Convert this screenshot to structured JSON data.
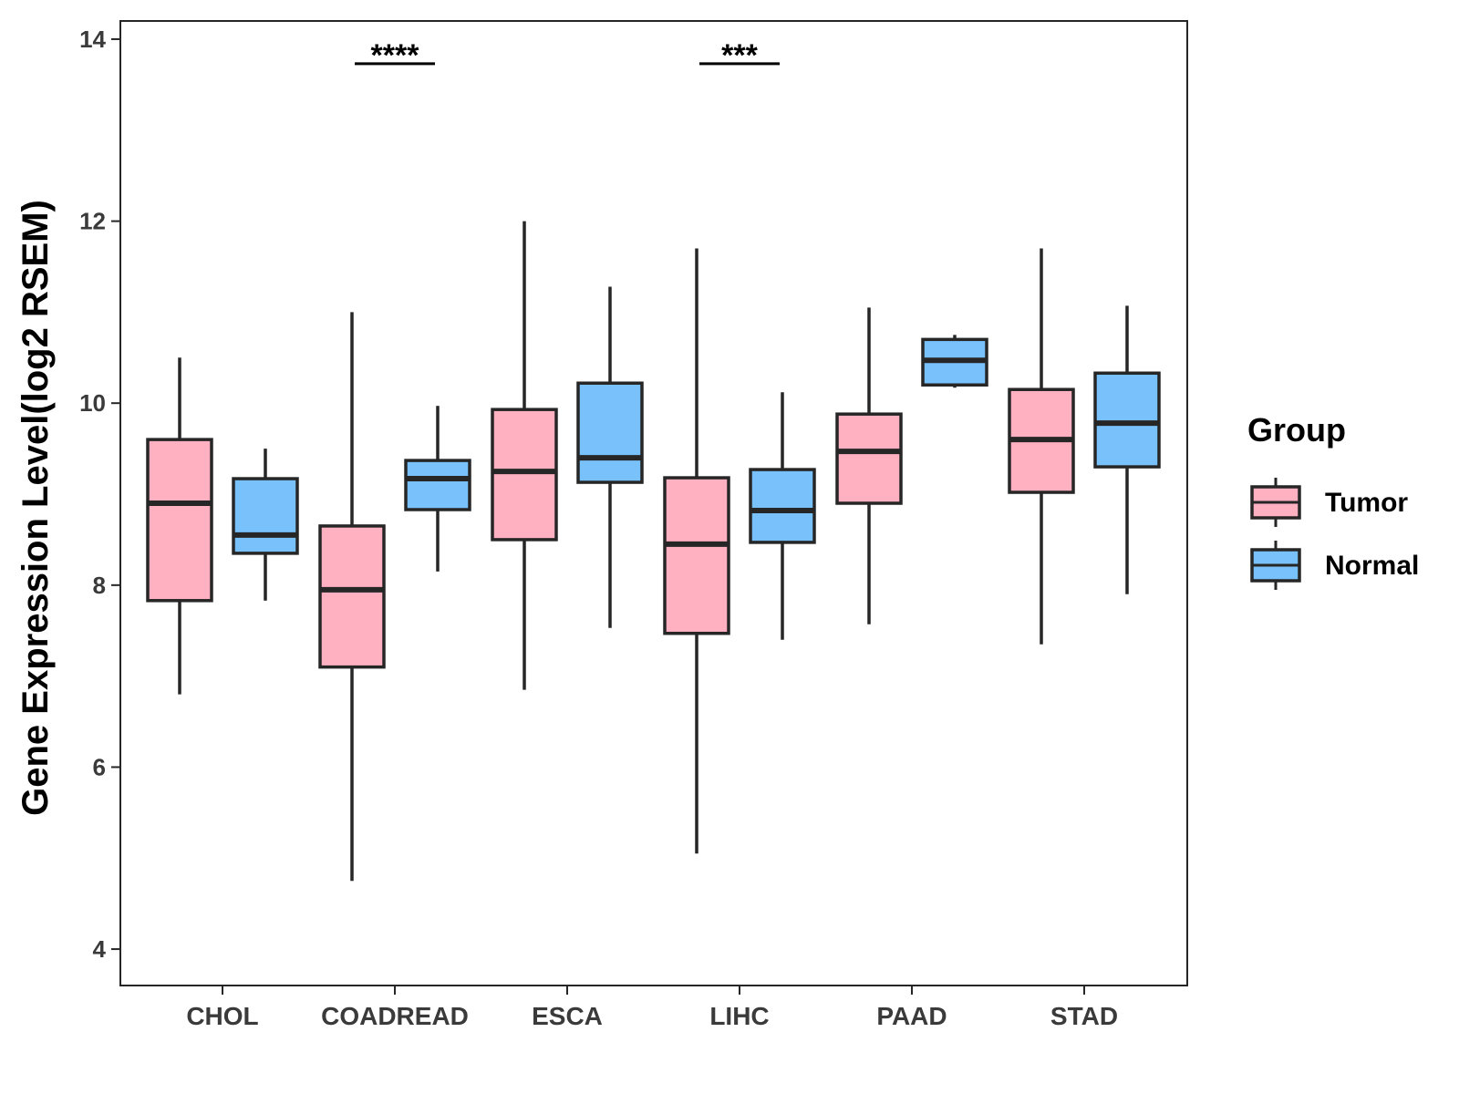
{
  "chart_data": {
    "type": "boxplot",
    "ylabel": "Gene Expression Level(log2 RSEM)",
    "xlabel": "",
    "ylim": [
      3.6,
      14.2
    ],
    "yticks": [
      4,
      6,
      8,
      10,
      12,
      14
    ],
    "ytick_labels": [
      "4",
      "6",
      "8",
      "10",
      "12",
      "14"
    ],
    "categories": [
      "CHOL",
      "COADREAD",
      "ESCA",
      "LIHC",
      "PAAD",
      "STAD"
    ],
    "legend": {
      "title": "Group",
      "position": "right",
      "entries": [
        "Tumor",
        "Normal"
      ]
    },
    "colors": {
      "Tumor": "#FFB0C1",
      "Normal": "#78C1FA",
      "outline": "#262626"
    },
    "series": [
      {
        "name": "Tumor",
        "boxes": [
          {
            "category": "CHOL",
            "low": 6.8,
            "q1": 7.83,
            "median": 8.9,
            "q3": 9.6,
            "high": 10.5
          },
          {
            "category": "COADREAD",
            "low": 4.75,
            "q1": 7.1,
            "median": 7.95,
            "q3": 8.65,
            "high": 11.0
          },
          {
            "category": "ESCA",
            "low": 6.85,
            "q1": 8.5,
            "median": 9.25,
            "q3": 9.93,
            "high": 12.0
          },
          {
            "category": "LIHC",
            "low": 5.05,
            "q1": 7.47,
            "median": 8.45,
            "q3": 9.18,
            "high": 11.7
          },
          {
            "category": "PAAD",
            "low": 7.57,
            "q1": 8.9,
            "median": 9.47,
            "q3": 9.88,
            "high": 11.05
          },
          {
            "category": "STAD",
            "low": 7.35,
            "q1": 9.02,
            "median": 9.6,
            "q3": 10.15,
            "high": 11.7
          }
        ]
      },
      {
        "name": "Normal",
        "boxes": [
          {
            "category": "CHOL",
            "low": 7.83,
            "q1": 8.35,
            "median": 8.55,
            "q3": 9.17,
            "high": 9.5
          },
          {
            "category": "COADREAD",
            "low": 8.15,
            "q1": 8.83,
            "median": 9.17,
            "q3": 9.37,
            "high": 9.97
          },
          {
            "category": "ESCA",
            "low": 7.53,
            "q1": 9.13,
            "median": 9.4,
            "q3": 10.22,
            "high": 11.28
          },
          {
            "category": "LIHC",
            "low": 7.4,
            "q1": 8.47,
            "median": 8.82,
            "q3": 9.27,
            "high": 10.12
          },
          {
            "category": "PAAD",
            "low": 10.17,
            "q1": 10.2,
            "median": 10.47,
            "q3": 10.7,
            "high": 10.75
          },
          {
            "category": "STAD",
            "low": 7.9,
            "q1": 9.3,
            "median": 9.78,
            "q3": 10.33,
            "high": 11.07
          }
        ]
      }
    ],
    "significance": [
      {
        "category": "COADREAD",
        "label": "****",
        "y": 13.73
      },
      {
        "category": "LIHC",
        "label": "***",
        "y": 13.73
      }
    ]
  }
}
